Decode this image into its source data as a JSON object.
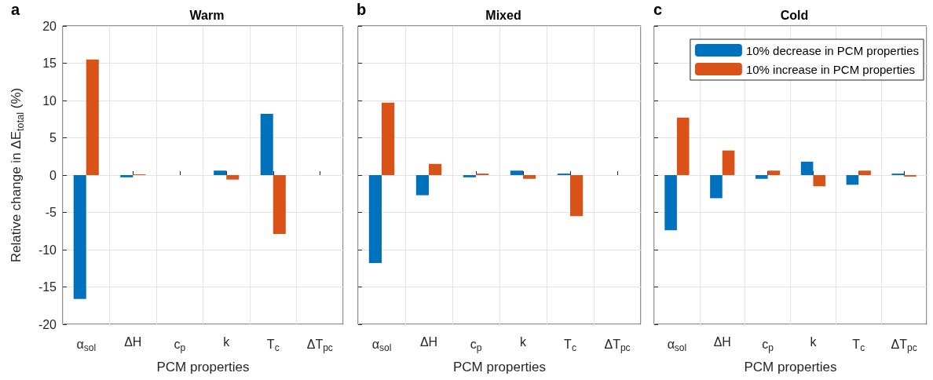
{
  "chart_data": [
    {
      "type": "bar",
      "title": "Warm",
      "xlabel": "PCM properties",
      "ylabel": "Relative change in ΔE$_{total}$ (%)",
      "annotations": [
        "a"
      ],
      "categories": [
        "α$_{sol}$",
        "ΔH",
        "c$_{p}$",
        "k",
        "T$_{c}$",
        "ΔT$_{pc}$"
      ],
      "series": [
        {
          "color": "#0072bd",
          "values": [
            -16.6,
            -0.3,
            0,
            0.6,
            8.2,
            0
          ]
        },
        {
          "color": "#d95319",
          "values": [
            15.5,
            0.1,
            0,
            -0.6,
            -7.9,
            0
          ]
        }
      ],
      "ylim": [
        -20,
        20
      ],
      "yticks": [
        -20,
        -15,
        -10,
        -5,
        0,
        5,
        10,
        15,
        20
      ],
      "grid": true,
      "legend": false
    },
    {
      "type": "bar",
      "title": "Mixed",
      "xlabel": "PCM properties",
      "annotations": [
        "b"
      ],
      "categories": [
        "α$_{sol}$",
        "ΔH",
        "c$_{p}$",
        "k",
        "T$_{c}$",
        "ΔT$_{pc}$"
      ],
      "series": [
        {
          "color": "#0072bd",
          "values": [
            -11.8,
            -2.7,
            -0.3,
            0.6,
            0.2,
            0
          ]
        },
        {
          "color": "#d95319",
          "values": [
            9.7,
            1.5,
            0.2,
            -0.5,
            -5.5,
            0
          ]
        }
      ],
      "ylim": [
        -20,
        20
      ],
      "yticks": [
        -20,
        -15,
        -10,
        -5,
        0,
        5,
        10,
        15,
        20
      ],
      "grid": true,
      "legend": false,
      "tick_labels": "x"
    },
    {
      "type": "bar",
      "title": "Cold",
      "xlabel": "PCM properties",
      "annotations": [
        "c"
      ],
      "categories": [
        "α$_{sol}$",
        "ΔH",
        "c$_{p}$",
        "k",
        "T$_{c}$",
        "ΔT$_{pc}$"
      ],
      "series": [
        {
          "name": "10% decrease in PCM properties",
          "color": "#0072bd",
          "values": [
            -7.4,
            -3.1,
            -0.5,
            1.8,
            -1.3,
            0.2
          ]
        },
        {
          "name": "10% increase in PCM properties",
          "color": "#d95319",
          "values": [
            7.7,
            3.3,
            0.6,
            -1.5,
            0.6,
            -0.2
          ]
        }
      ],
      "ylim": [
        -20,
        20
      ],
      "yticks": [
        -20,
        -15,
        -10,
        -5,
        0,
        5,
        10,
        15,
        20
      ],
      "grid": true,
      "legend": "top right",
      "tick_labels": "x"
    }
  ]
}
